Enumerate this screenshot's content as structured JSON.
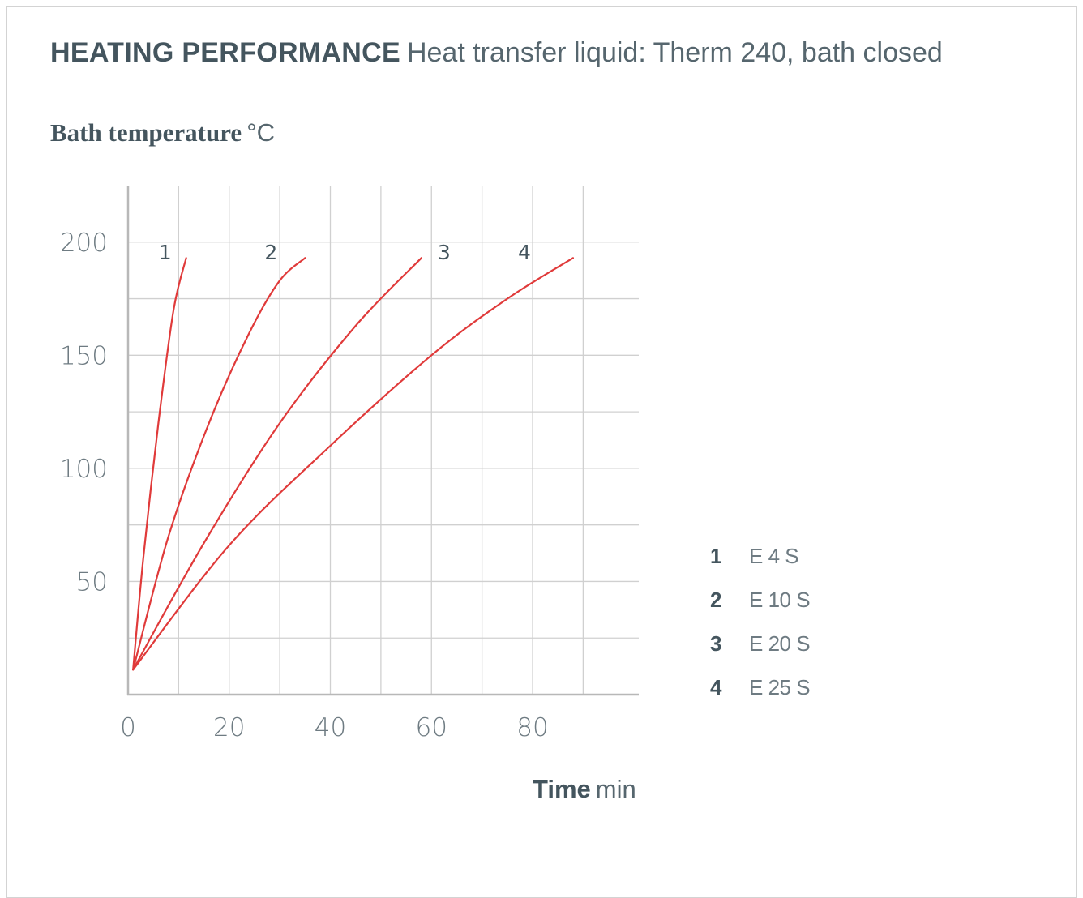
{
  "colors": {
    "line": "#e03a3a",
    "grid": "#d0d0d0",
    "axis": "#b8b8b8"
  },
  "chart_data": {
    "type": "line",
    "title": "HEATING PERFORMANCE",
    "subtitle": "Heat transfer liquid: Therm 240, bath closed",
    "ylabel": "Bath temperature",
    "yunit": "°C",
    "xlabel": "Time",
    "xunit": "min",
    "xlim": [
      0,
      101
    ],
    "ylim": [
      0,
      225
    ],
    "xticks": [
      0,
      20,
      40,
      60,
      80
    ],
    "yticks": [
      50,
      100,
      150,
      200
    ],
    "grid": true,
    "legend_position": "right",
    "series": [
      {
        "name": "E 4 S",
        "label": "1",
        "x": [
          1,
          3,
          6,
          9,
          11.5
        ],
        "y": [
          11,
          60,
          120,
          170,
          193
        ]
      },
      {
        "name": "E 10 S",
        "label": "2",
        "x": [
          1,
          8,
          16,
          24,
          30,
          35
        ],
        "y": [
          11,
          70,
          120,
          160,
          183,
          193
        ]
      },
      {
        "name": "E 20 S",
        "label": "3",
        "x": [
          1,
          15,
          30,
          45,
          58
        ],
        "y": [
          11,
          67,
          120,
          163,
          193
        ]
      },
      {
        "name": "E 25 S",
        "label": "4",
        "x": [
          1,
          20,
          40,
          60,
          75,
          88
        ],
        "y": [
          11,
          66,
          110,
          150,
          175,
          193
        ]
      }
    ]
  },
  "legend": {
    "items": [
      {
        "num": "1",
        "name": "E 4 S"
      },
      {
        "num": "2",
        "name": "E 10 S"
      },
      {
        "num": "3",
        "name": "E 20 S"
      },
      {
        "num": "4",
        "name": "E 25 S"
      }
    ]
  }
}
